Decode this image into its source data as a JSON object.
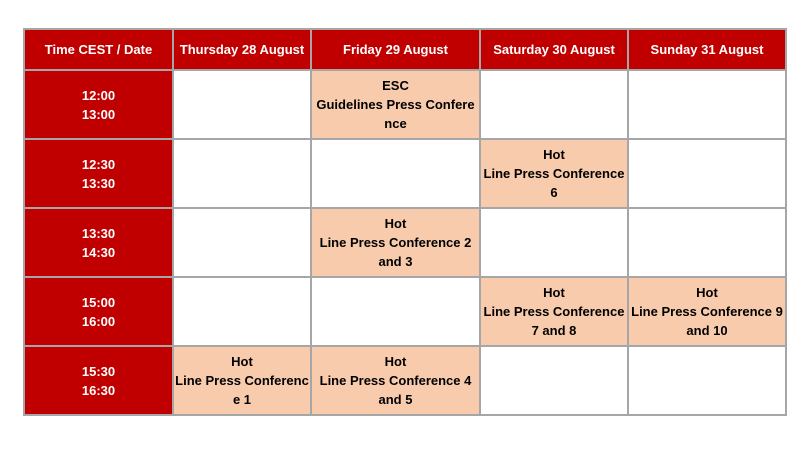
{
  "header": [
    "Time CEST / Date",
    "Thursday 28 August",
    "Friday 29 August",
    "Saturday 30 August",
    "Sunday 31 August"
  ],
  "rows": [
    {
      "time": [
        "12:00",
        "13:00"
      ],
      "cells": [
        [],
        [
          "ESC",
          "Guidelines Press Confere",
          "nce"
        ],
        [],
        []
      ]
    },
    {
      "time": [
        "12:30",
        "13:30"
      ],
      "cells": [
        [],
        [],
        [
          "Hot",
          "Line Press Conference",
          "6"
        ],
        []
      ]
    },
    {
      "time": [
        "13:30",
        "14:30"
      ],
      "cells": [
        [],
        [
          "Hot",
          "Line Press Conference 2",
          "and 3"
        ],
        [],
        []
      ]
    },
    {
      "time": [
        "15:00",
        "16:00"
      ],
      "cells": [
        [],
        [],
        [
          "Hot",
          "Line Press Conference",
          "7 and 8"
        ],
        [
          "Hot",
          "Line Press Conference 9",
          "and 10"
        ]
      ]
    },
    {
      "time": [
        "15:30",
        "16:30"
      ],
      "cells": [
        [
          "Hot",
          "Line Press Conferenc",
          "e 1"
        ],
        [
          "Hot",
          "Line Press Conference 4",
          "and 5"
        ],
        [],
        []
      ]
    }
  ],
  "colors": {
    "header": "#c00000",
    "event": "#f8cbad",
    "border": "#a6a6a6"
  }
}
